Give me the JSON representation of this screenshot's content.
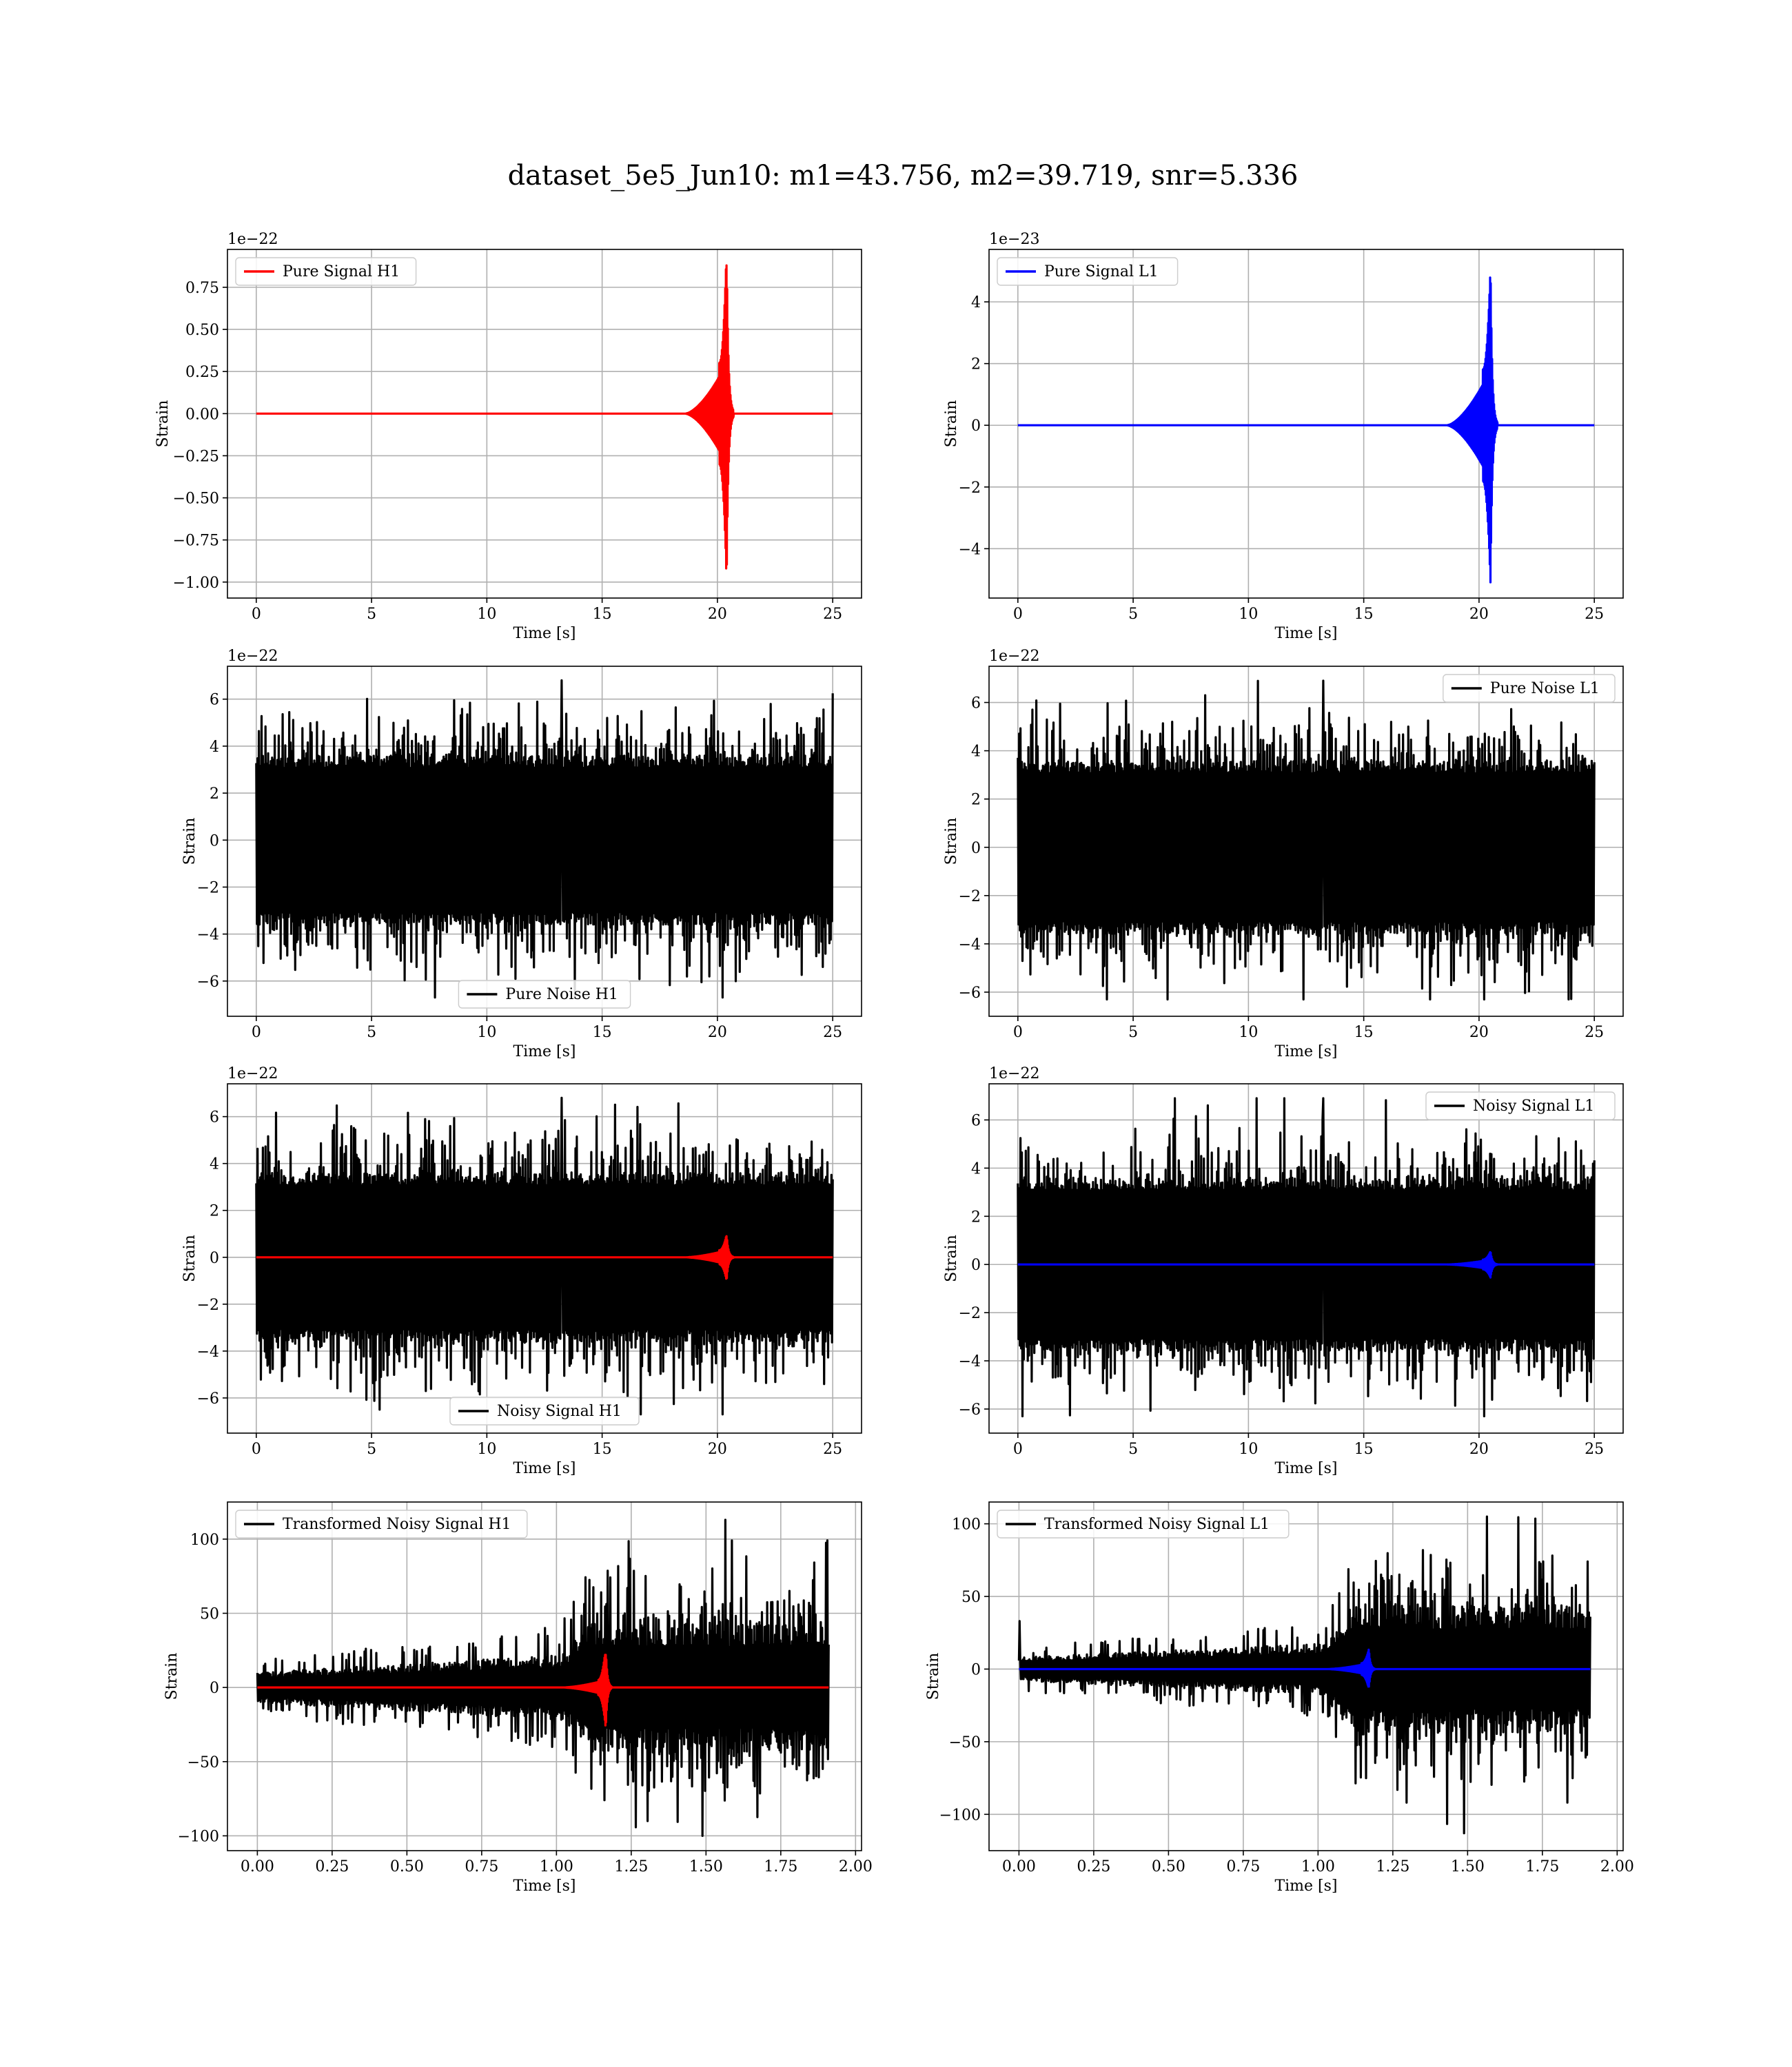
{
  "figure": {
    "suptitle": "dataset_5e5_Jun10: m1=43.756, m2=39.719, snr=5.336"
  },
  "chart_data": [
    {
      "type": "line",
      "panel": "top-left",
      "xlabel": "Time [s]",
      "ylabel": "Strain",
      "offset_text": "1e−22",
      "xlim": [
        -1.25,
        26.25
      ],
      "ylim": [
        -1.095,
        0.975
      ],
      "xticks": [
        0,
        5,
        10,
        15,
        20,
        25
      ],
      "xtick_labels": [
        "0",
        "5",
        "10",
        "15",
        "20",
        "25"
      ],
      "yticks": [
        -1.0,
        -0.75,
        -0.5,
        -0.25,
        0.0,
        0.25,
        0.5,
        0.75
      ],
      "ytick_labels": [
        "−1.00",
        "−0.75",
        "−0.50",
        "−0.25",
        "0.00",
        "0.25",
        "0.50",
        "0.75"
      ],
      "grid": true,
      "legend_loc": "upper left",
      "legend": [
        "Pure Signal H1"
      ],
      "series": [
        {
          "name": "Pure Signal H1",
          "color": "#ff0000",
          "kind": "chirp",
          "x_start": 0,
          "x_end": 25,
          "merger": 20.4,
          "onset": 18.6,
          "ring": 0.3,
          "peak": 0.88,
          "trough": -1.01,
          "mid_amp": 0.3
        }
      ]
    },
    {
      "type": "line",
      "panel": "top-right",
      "xlabel": "Time [s]",
      "ylabel": "Strain",
      "offset_text": "1e−23",
      "xlim": [
        -1.25,
        26.25
      ],
      "ylim": [
        -5.6,
        5.7
      ],
      "xticks": [
        0,
        5,
        10,
        15,
        20,
        25
      ],
      "xtick_labels": [
        "0",
        "5",
        "10",
        "15",
        "20",
        "25"
      ],
      "yticks": [
        -4,
        -2,
        0,
        2,
        4
      ],
      "ytick_labels": [
        "−4",
        "−2",
        "0",
        "2",
        "4"
      ],
      "grid": true,
      "legend_loc": "upper left",
      "legend": [
        "Pure Signal L1"
      ],
      "series": [
        {
          "name": "Pure Signal L1",
          "color": "#0000ff",
          "kind": "chirp",
          "x_start": 0,
          "x_end": 25,
          "merger": 20.5,
          "onset": 18.6,
          "ring": 0.3,
          "peak": 5.2,
          "trough": -5.1,
          "mid_amp": 1.8
        }
      ]
    },
    {
      "type": "line",
      "panel": "row2-left",
      "xlabel": "Time [s]",
      "ylabel": "Strain",
      "offset_text": "1e−22",
      "xlim": [
        -1.25,
        26.25
      ],
      "ylim": [
        -7.5,
        7.4
      ],
      "xticks": [
        0,
        5,
        10,
        15,
        20,
        25
      ],
      "xtick_labels": [
        "0",
        "5",
        "10",
        "15",
        "20",
        "25"
      ],
      "yticks": [
        -6,
        -4,
        -2,
        0,
        2,
        4,
        6
      ],
      "ytick_labels": [
        "−6",
        "−4",
        "−2",
        "0",
        "2",
        "4",
        "6"
      ],
      "grid": true,
      "legend_loc": "lower center",
      "legend": [
        "Pure Noise H1"
      ],
      "series": [
        {
          "name": "Pure Noise H1",
          "color": "#000000",
          "kind": "noise",
          "x_start": 0,
          "x_end": 25,
          "band": 3.6,
          "spike_max": 6.8,
          "spike_min": -6.7
        }
      ]
    },
    {
      "type": "line",
      "panel": "row2-right",
      "xlabel": "Time [s]",
      "ylabel": "Strain",
      "offset_text": "1e−22",
      "xlim": [
        -1.25,
        26.25
      ],
      "ylim": [
        -7.0,
        7.5
      ],
      "xticks": [
        0,
        5,
        10,
        15,
        20,
        25
      ],
      "xtick_labels": [
        "0",
        "5",
        "10",
        "15",
        "20",
        "25"
      ],
      "yticks": [
        -6,
        -4,
        -2,
        0,
        2,
        4,
        6
      ],
      "ytick_labels": [
        "−6",
        "−4",
        "−2",
        "0",
        "2",
        "4",
        "6"
      ],
      "grid": true,
      "legend_loc": "upper right",
      "legend": [
        "Pure Noise L1"
      ],
      "series": [
        {
          "name": "Pure Noise L1",
          "color": "#000000",
          "kind": "noise",
          "x_start": 0,
          "x_end": 25,
          "band": 3.6,
          "spike_max": 6.9,
          "spike_min": -6.3
        }
      ]
    },
    {
      "type": "line",
      "panel": "row3-left",
      "xlabel": "Time [s]",
      "ylabel": "Strain",
      "offset_text": "1e−22",
      "xlim": [
        -1.25,
        26.25
      ],
      "ylim": [
        -7.5,
        7.4
      ],
      "xticks": [
        0,
        5,
        10,
        15,
        20,
        25
      ],
      "xtick_labels": [
        "0",
        "5",
        "10",
        "15",
        "20",
        "25"
      ],
      "yticks": [
        -6,
        -4,
        -2,
        0,
        2,
        4,
        6
      ],
      "ytick_labels": [
        "−6",
        "−4",
        "−2",
        "0",
        "2",
        "4",
        "6"
      ],
      "grid": true,
      "legend_loc": "lower center",
      "legend": [
        "Noisy Signal H1"
      ],
      "series": [
        {
          "name": "Noisy Signal H1",
          "color": "#000000",
          "kind": "noise",
          "x_start": 0,
          "x_end": 25,
          "band": 3.6,
          "spike_max": 6.8,
          "spike_min": -6.7
        },
        {
          "color": "#ff0000",
          "kind": "chirp",
          "x_start": 0,
          "x_end": 25,
          "merger": 20.4,
          "onset": 18.6,
          "ring": 0.3,
          "peak": 0.9,
          "trough": -1.0,
          "mid_amp": 0.3
        }
      ]
    },
    {
      "type": "line",
      "panel": "row3-right",
      "xlabel": "Time [s]",
      "ylabel": "Strain",
      "offset_text": "1e−22",
      "xlim": [
        -1.25,
        26.25
      ],
      "ylim": [
        -7.0,
        7.5
      ],
      "xticks": [
        0,
        5,
        10,
        15,
        20,
        25
      ],
      "xtick_labels": [
        "0",
        "5",
        "10",
        "15",
        "20",
        "25"
      ],
      "yticks": [
        -6,
        -4,
        -2,
        0,
        2,
        4,
        6
      ],
      "ytick_labels": [
        "−6",
        "−4",
        "−2",
        "0",
        "2",
        "4",
        "6"
      ],
      "grid": true,
      "legend_loc": "upper right",
      "legend": [
        "Noisy Signal L1"
      ],
      "series": [
        {
          "name": "Noisy Signal L1",
          "color": "#000000",
          "kind": "noise",
          "x_start": 0,
          "x_end": 25,
          "band": 3.6,
          "spike_max": 6.9,
          "spike_min": -6.3
        },
        {
          "color": "#0000ff",
          "kind": "chirp",
          "x_start": 0,
          "x_end": 25,
          "merger": 20.5,
          "onset": 18.6,
          "ring": 0.3,
          "peak": 0.55,
          "trough": -0.55,
          "mid_amp": 0.2
        }
      ]
    },
    {
      "type": "line",
      "panel": "bottom-left",
      "xlabel": "Time [s]",
      "ylabel": "Strain",
      "offset_text": "",
      "xlim": [
        -0.1,
        2.02
      ],
      "ylim": [
        -110,
        125
      ],
      "xticks": [
        0.0,
        0.25,
        0.5,
        0.75,
        1.0,
        1.25,
        1.5,
        1.75,
        2.0
      ],
      "xtick_labels": [
        "0.00",
        "0.25",
        "0.50",
        "0.75",
        "1.00",
        "1.25",
        "1.50",
        "1.75",
        "2.00"
      ],
      "yticks": [
        -100,
        -50,
        0,
        50,
        100
      ],
      "ytick_labels": [
        "−100",
        "−50",
        "0",
        "50",
        "100"
      ],
      "grid": true,
      "legend_loc": "upper left",
      "legend": [
        "Transformed Noisy Signal H1"
      ],
      "series": [
        {
          "name": "Transformed Noisy Signal H1",
          "color": "#000000",
          "kind": "whitened",
          "x_start": 0,
          "x_end": 1.91,
          "jump": 1.12,
          "pre_amp": 10,
          "post_amp": 45,
          "spike_max": 113,
          "spike_min": -100
        },
        {
          "color": "#ff0000",
          "kind": "chirp",
          "x_start": 0,
          "x_end": 1.91,
          "merger": 1.165,
          "onset": 1.02,
          "ring": 0.02,
          "peak": 22,
          "trough": -28,
          "mid_amp": 5
        }
      ]
    },
    {
      "type": "line",
      "panel": "bottom-right",
      "xlabel": "Time [s]",
      "ylabel": "Strain",
      "offset_text": "",
      "xlim": [
        -0.1,
        2.02
      ],
      "ylim": [
        -125,
        115
      ],
      "xticks": [
        0.0,
        0.25,
        0.5,
        0.75,
        1.0,
        1.25,
        1.5,
        1.75,
        2.0
      ],
      "xtick_labels": [
        "0.00",
        "0.25",
        "0.50",
        "0.75",
        "1.00",
        "1.25",
        "1.50",
        "1.75",
        "2.00"
      ],
      "yticks": [
        -100,
        -50,
        0,
        50,
        100
      ],
      "ytick_labels": [
        "−100",
        "−50",
        "0",
        "50",
        "100"
      ],
      "grid": true,
      "legend_loc": "upper left",
      "legend": [
        "Transformed Noisy Signal L1"
      ],
      "series": [
        {
          "name": "Transformed Noisy Signal L1",
          "color": "#000000",
          "kind": "whitened",
          "x_start": 0,
          "x_end": 1.91,
          "jump": 1.12,
          "pre_amp": 8,
          "post_amp": 45,
          "spike_max": 105,
          "spike_min": -113,
          "start_spike": 33
        },
        {
          "color": "#0000ff",
          "kind": "chirp",
          "x_start": 0,
          "x_end": 1.91,
          "merger": 1.17,
          "onset": 1.03,
          "ring": 0.02,
          "peak": 14,
          "trough": -12,
          "mid_amp": 4
        }
      ]
    }
  ]
}
